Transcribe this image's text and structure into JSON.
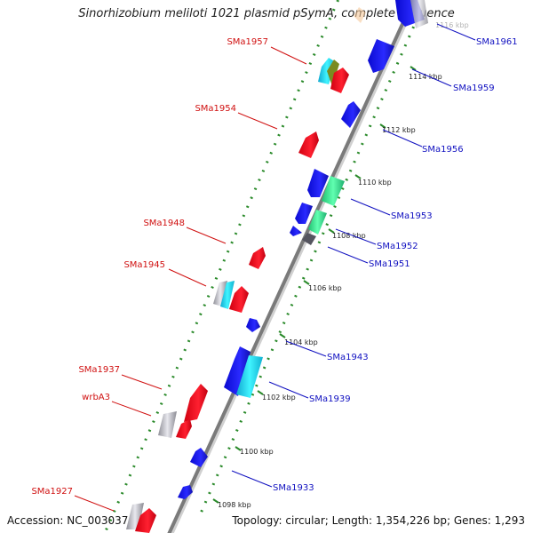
{
  "title": "Sinorhizobium meliloti 1021 plasmid pSymA, complete sequence",
  "footer": {
    "accession": "Accession: NC_003037",
    "topology": "Topology: circular; Length: 1,354,226 bp; Genes: 1,293"
  },
  "colors": {
    "forward_gene": "#e8001a",
    "reverse_gene": "#1010e0",
    "cyan_gene": "#20e0f0",
    "teal_gene": "#30e890",
    "gray_gene": "#a0a0a8",
    "backbone": "#808080",
    "tick_dots": "#2a8a2a",
    "left_label": "#d01010",
    "right_label": "#1010c0"
  },
  "scale_labels": [
    "1116 kbp",
    "1114 kbp",
    "1112 kbp",
    "1110 kbp",
    "1108 kbp",
    "1106 kbp",
    "1104 kbp",
    "1102 kbp",
    "1100 kbp",
    "1098 kbp"
  ],
  "left_genes": [
    "SMa1957",
    "SMa1954",
    "SMa1948",
    "SMa1945",
    "SMa1937",
    "wrbA3",
    "SMa1927"
  ],
  "right_genes": [
    "SMa1961",
    "SMa1959",
    "SMa1956",
    "SMa1953",
    "SMa1952",
    "SMa1951",
    "SMa1943",
    "SMa1939",
    "SMa1933"
  ]
}
